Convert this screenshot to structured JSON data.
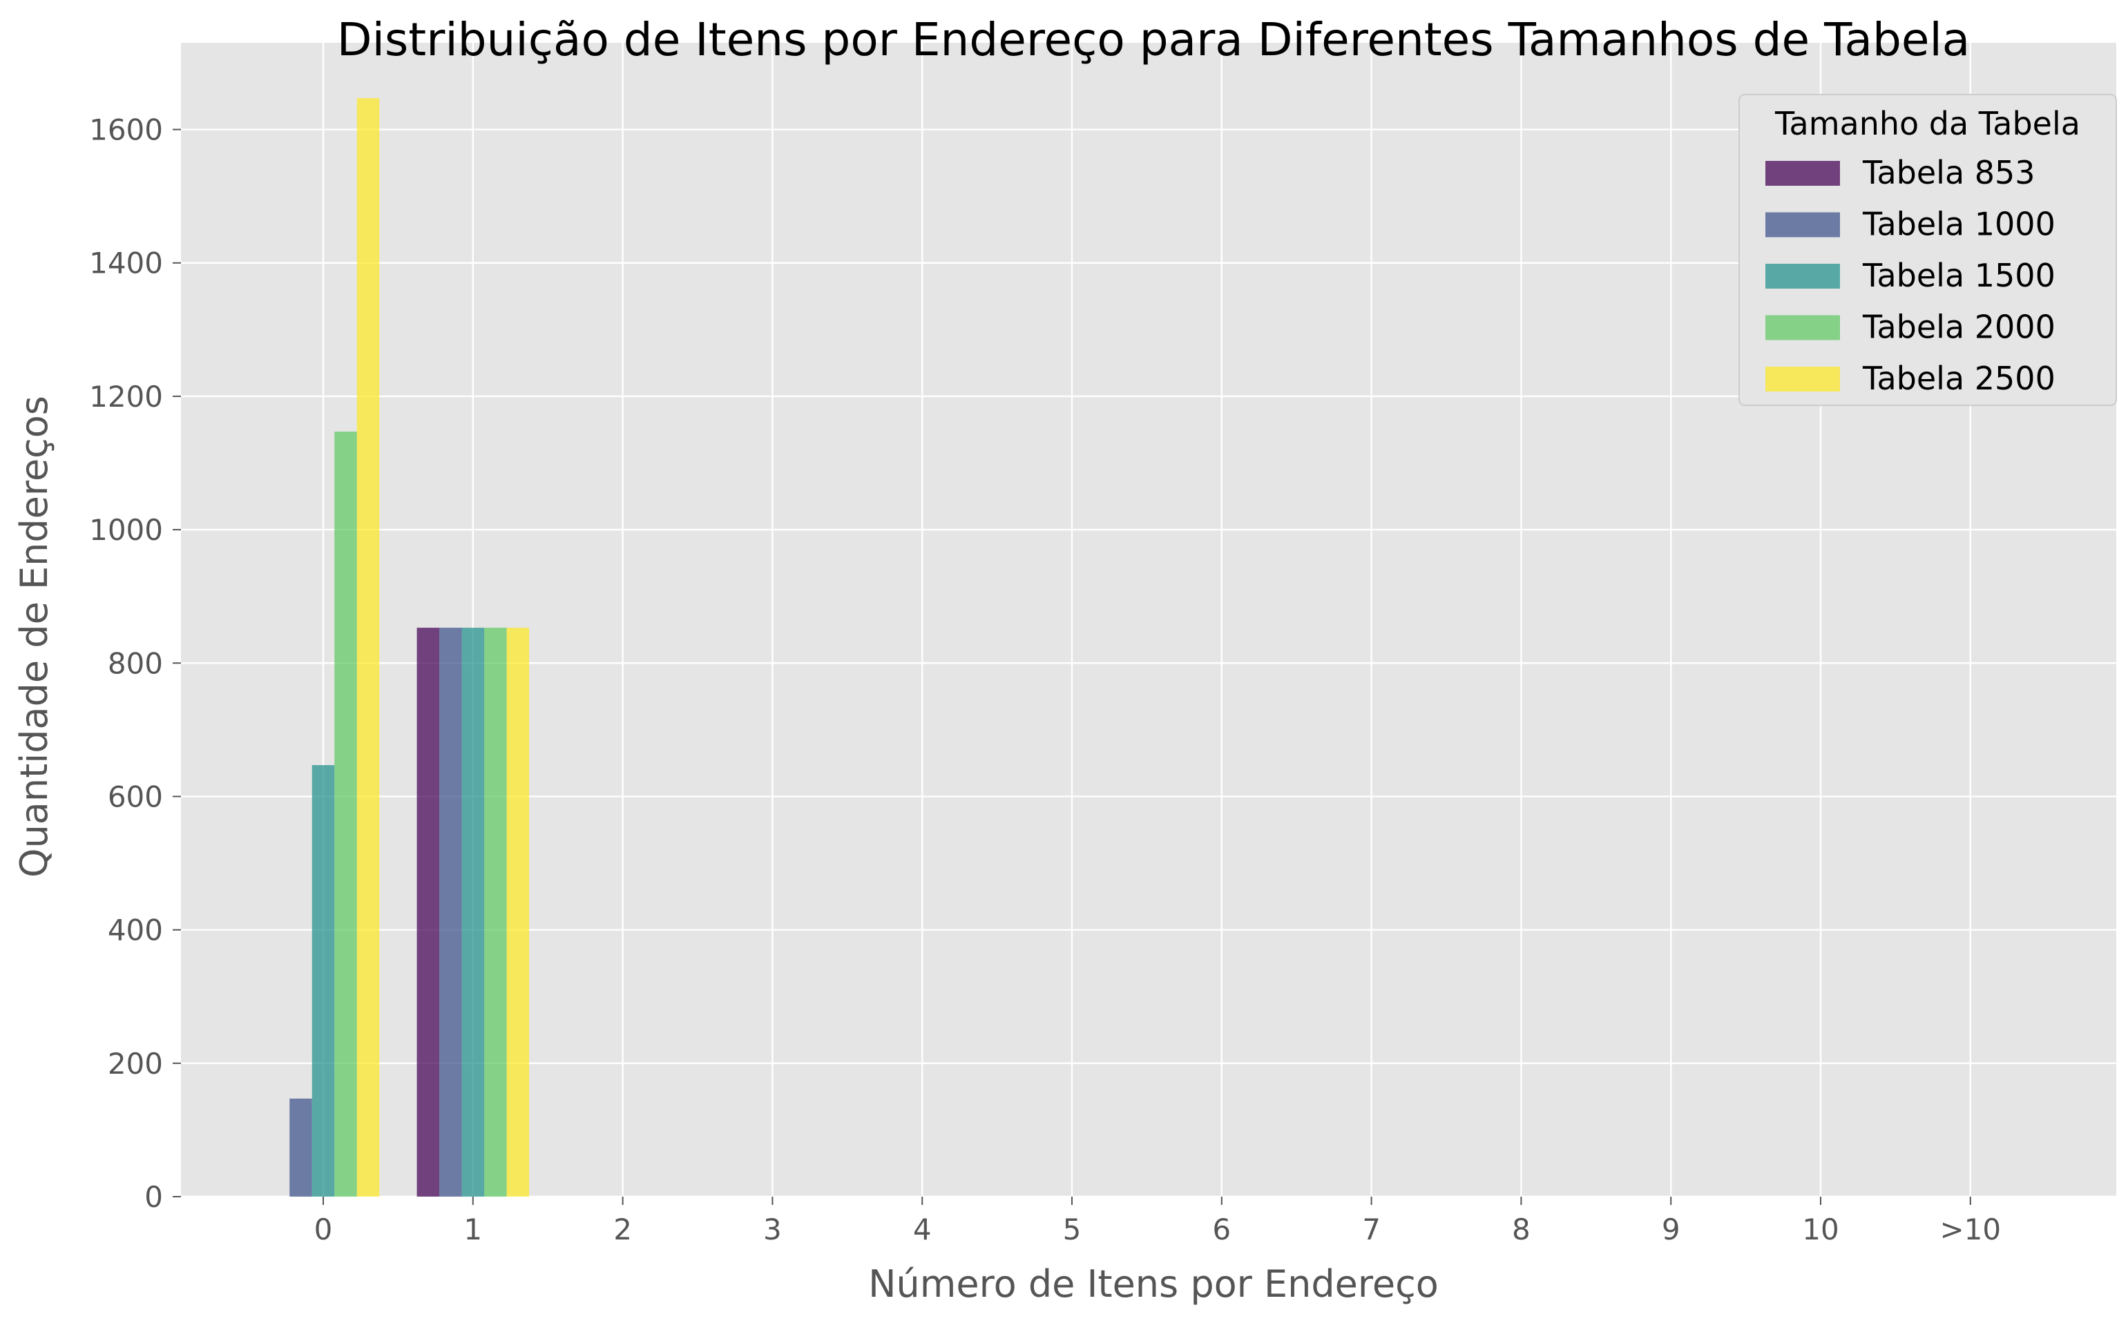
{
  "chart_data": {
    "type": "bar",
    "title": "Distribuição de Itens por Endereço para Diferentes Tamanhos de Tabela",
    "xlabel": "Número de Itens por Endereço",
    "ylabel": "Quantidade de Endereços",
    "categories": [
      "0",
      "1",
      "2",
      "3",
      "4",
      "5",
      "6",
      "7",
      "8",
      "9",
      "10",
      ">10"
    ],
    "ylim": [
      0,
      1730
    ],
    "yticks": [
      0,
      200,
      400,
      600,
      800,
      1000,
      1200,
      1400,
      1600
    ],
    "grid": true,
    "legend": {
      "title": "Tamanho da Tabela",
      "placement": "top-right"
    },
    "series": [
      {
        "name": "Tabela 853",
        "color": "#440154",
        "values": [
          0,
          853,
          0,
          0,
          0,
          0,
          0,
          0,
          0,
          0,
          0,
          0
        ]
      },
      {
        "name": "Tabela 1000",
        "color": "#3b528b",
        "values": [
          147,
          853,
          0,
          0,
          0,
          0,
          0,
          0,
          0,
          0,
          0,
          0
        ]
      },
      {
        "name": "Tabela 1500",
        "color": "#21918c",
        "values": [
          647,
          853,
          0,
          0,
          0,
          0,
          0,
          0,
          0,
          0,
          0,
          0
        ]
      },
      {
        "name": "Tabela 2000",
        "color": "#5ec962",
        "values": [
          1147,
          853,
          0,
          0,
          0,
          0,
          0,
          0,
          0,
          0,
          0,
          0
        ]
      },
      {
        "name": "Tabela 2500",
        "color": "#fde725",
        "values": [
          1647,
          853,
          0,
          0,
          0,
          0,
          0,
          0,
          0,
          0,
          0,
          0
        ]
      }
    ],
    "colors": {
      "plot_background": "#e5e5e5",
      "grid": "#ffffff",
      "tick_text": "#555555",
      "title_text": "#000000"
    }
  }
}
